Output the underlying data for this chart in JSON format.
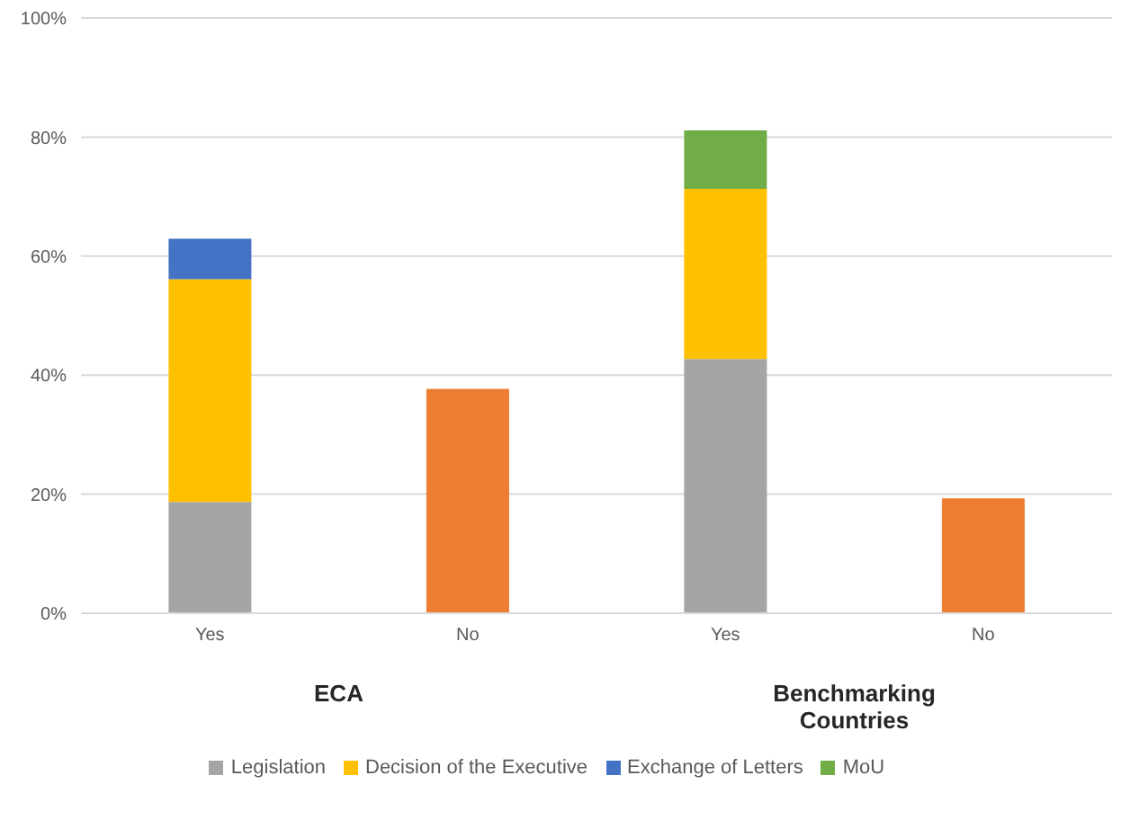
{
  "chart_data": {
    "type": "bar",
    "stacked": true,
    "categories": [
      "Yes",
      "No",
      "Yes",
      "No"
    ],
    "series": [
      {
        "name": "Legislation",
        "color": "#a5a5a5",
        "values": [
          18.7,
          null,
          42.7,
          null
        ]
      },
      {
        "name": "Decision of the Executive",
        "color": "#ffc000",
        "values": [
          37.4,
          null,
          28.6,
          null
        ]
      },
      {
        "name": "Exchange of Letters",
        "color": "#4472c4",
        "values": [
          6.8,
          null,
          null,
          null
        ]
      },
      {
        "name": "MoU",
        "color": "#70ad47",
        "values": [
          null,
          null,
          9.8,
          null
        ]
      },
      {
        "color": "#ed7d31",
        "values": [
          null,
          37.7,
          null,
          19.3
        ]
      }
    ],
    "ylim": [
      0,
      100
    ],
    "yticks": [
      {
        "value": 0,
        "label": "0%"
      },
      {
        "value": 20,
        "label": "20%"
      },
      {
        "value": 40,
        "label": "40%"
      },
      {
        "value": 60,
        "label": "60%"
      },
      {
        "value": 80,
        "label": "80%"
      },
      {
        "value": 100,
        "label": "100%"
      }
    ],
    "grid": "y",
    "legend": "bottom",
    "annotations": [
      "ECA",
      "Benchmarking Countries"
    ]
  }
}
